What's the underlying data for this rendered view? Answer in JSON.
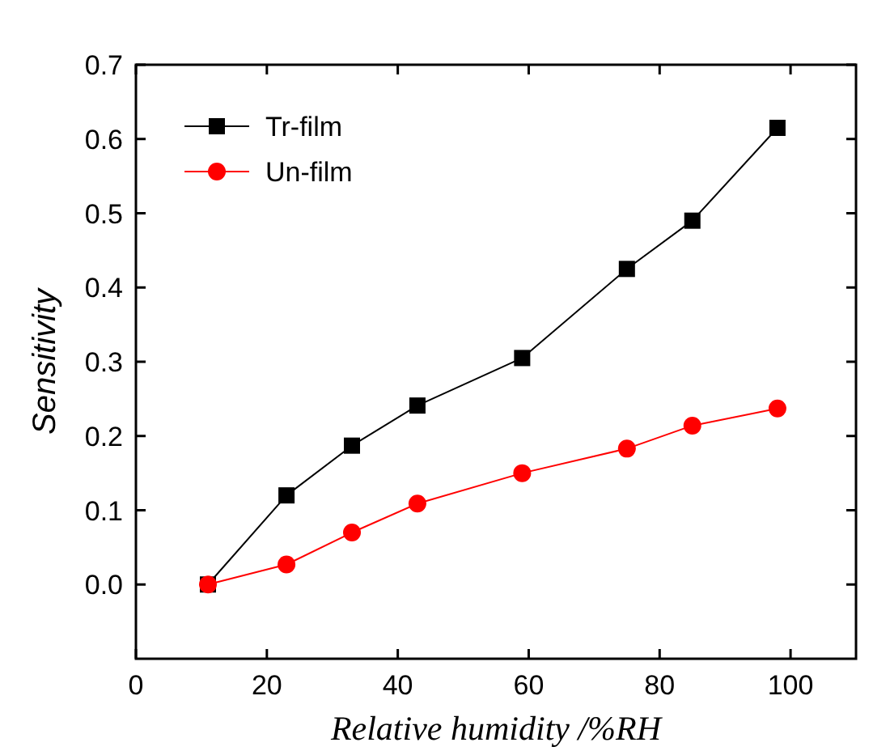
{
  "chart_data": {
    "type": "line",
    "xlabel": "Relative humidity /%RH",
    "ylabel": "Sensitivity",
    "x": [
      11,
      23,
      33,
      43,
      59,
      75,
      85,
      98
    ],
    "series": [
      {
        "name": "Tr-film",
        "color": "#000000",
        "marker": "square",
        "values": [
          0,
          0.12,
          0.187,
          0.241,
          0.305,
          0.425,
          0.49,
          0.615
        ]
      },
      {
        "name": "Un-film",
        "color": "#ff0000",
        "marker": "circle",
        "values": [
          0,
          0.027,
          0.07,
          0.109,
          0.15,
          0.183,
          0.214,
          0.237
        ]
      }
    ],
    "xlim": [
      0,
      110
    ],
    "xticks": [
      0,
      20,
      40,
      60,
      80,
      100
    ],
    "ylim": [
      -0.1,
      0.7
    ],
    "yticks": [
      {
        "value": 0,
        "label": "0.0"
      },
      0.1,
      0.2,
      0.3,
      0.4,
      0.5,
      0.6,
      0.7
    ],
    "grid": false,
    "legend": "top left",
    "line_style": "solid"
  }
}
